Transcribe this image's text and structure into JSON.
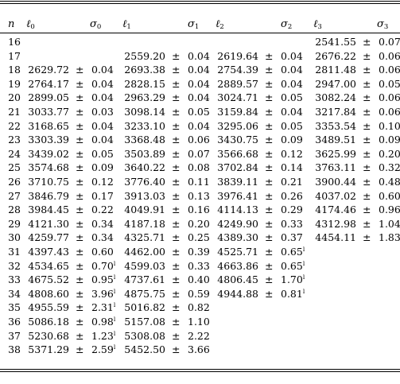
{
  "table": {
    "headers": [
      {
        "base": "n",
        "sub": ""
      },
      {
        "base": "ℓ",
        "sub": "0"
      },
      {
        "base": "σ",
        "sub": "0"
      },
      {
        "base": "ℓ",
        "sub": "1"
      },
      {
        "base": "σ",
        "sub": "1"
      },
      {
        "base": "ℓ",
        "sub": "2"
      },
      {
        "base": "σ",
        "sub": "2"
      },
      {
        "base": "ℓ",
        "sub": "3"
      },
      {
        "base": "σ",
        "sub": "3"
      }
    ],
    "pm": "±",
    "footnote_mark": "l",
    "rows": [
      {
        "n": "16",
        "cols": [
          null,
          null,
          null,
          {
            "l": "2541.55",
            "s": "0.07"
          }
        ]
      },
      {
        "n": "17",
        "cols": [
          null,
          {
            "l": "2559.20",
            "s": "0.04"
          },
          {
            "l": "2619.64",
            "s": "0.04"
          },
          {
            "l": "2676.22",
            "s": "0.06"
          }
        ]
      },
      {
        "n": "18",
        "cols": [
          {
            "l": "2629.72",
            "s": "0.04"
          },
          {
            "l": "2693.38",
            "s": "0.04"
          },
          {
            "l": "2754.39",
            "s": "0.04"
          },
          {
            "l": "2811.48",
            "s": "0.06"
          }
        ]
      },
      {
        "n": "19",
        "cols": [
          {
            "l": "2764.17",
            "s": "0.04"
          },
          {
            "l": "2828.15",
            "s": "0.04"
          },
          {
            "l": "2889.57",
            "s": "0.04"
          },
          {
            "l": "2947.00",
            "s": "0.05"
          }
        ]
      },
      {
        "n": "20",
        "cols": [
          {
            "l": "2899.05",
            "s": "0.04"
          },
          {
            "l": "2963.29",
            "s": "0.04"
          },
          {
            "l": "3024.71",
            "s": "0.05"
          },
          {
            "l": "3082.24",
            "s": "0.06"
          }
        ]
      },
      {
        "n": "21",
        "cols": [
          {
            "l": "3033.77",
            "s": "0.03"
          },
          {
            "l": "3098.14",
            "s": "0.05"
          },
          {
            "l": "3159.84",
            "s": "0.04"
          },
          {
            "l": "3217.84",
            "s": "0.06"
          }
        ]
      },
      {
        "n": "22",
        "cols": [
          {
            "l": "3168.65",
            "s": "0.04"
          },
          {
            "l": "3233.10",
            "s": "0.04"
          },
          {
            "l": "3295.06",
            "s": "0.05"
          },
          {
            "l": "3353.54",
            "s": "0.10"
          }
        ]
      },
      {
        "n": "23",
        "cols": [
          {
            "l": "3303.39",
            "s": "0.04"
          },
          {
            "l": "3368.48",
            "s": "0.06"
          },
          {
            "l": "3430.75",
            "s": "0.09"
          },
          {
            "l": "3489.51",
            "s": "0.09"
          }
        ]
      },
      {
        "n": "24",
        "cols": [
          {
            "l": "3439.02",
            "s": "0.05"
          },
          {
            "l": "3503.89",
            "s": "0.07"
          },
          {
            "l": "3566.68",
            "s": "0.12"
          },
          {
            "l": "3625.99",
            "s": "0.20"
          }
        ]
      },
      {
        "n": "25",
        "cols": [
          {
            "l": "3574.68",
            "s": "0.09"
          },
          {
            "l": "3640.22",
            "s": "0.08"
          },
          {
            "l": "3702.84",
            "s": "0.14"
          },
          {
            "l": "3763.11",
            "s": "0.32"
          }
        ]
      },
      {
        "n": "26",
        "cols": [
          {
            "l": "3710.75",
            "s": "0.12"
          },
          {
            "l": "3776.40",
            "s": "0.11"
          },
          {
            "l": "3839.11",
            "s": "0.21"
          },
          {
            "l": "3900.44",
            "s": "0.48"
          }
        ]
      },
      {
        "n": "27",
        "cols": [
          {
            "l": "3846.79",
            "s": "0.17"
          },
          {
            "l": "3913.03",
            "s": "0.13"
          },
          {
            "l": "3976.41",
            "s": "0.26"
          },
          {
            "l": "4037.02",
            "s": "0.60"
          }
        ]
      },
      {
        "n": "28",
        "cols": [
          {
            "l": "3984.45",
            "s": "0.22"
          },
          {
            "l": "4049.91",
            "s": "0.16"
          },
          {
            "l": "4114.13",
            "s": "0.29"
          },
          {
            "l": "4174.46",
            "s": "0.96"
          }
        ]
      },
      {
        "n": "29",
        "cols": [
          {
            "l": "4121.30",
            "s": "0.34"
          },
          {
            "l": "4187.18",
            "s": "0.20"
          },
          {
            "l": "4249.90",
            "s": "0.33"
          },
          {
            "l": "4312.98",
            "s": "1.04"
          }
        ]
      },
      {
        "n": "30",
        "cols": [
          {
            "l": "4259.77",
            "s": "0.34"
          },
          {
            "l": "4325.71",
            "s": "0.25"
          },
          {
            "l": "4389.30",
            "s": "0.37"
          },
          {
            "l": "4454.11",
            "s": "1.83"
          }
        ]
      },
      {
        "n": "31",
        "cols": [
          {
            "l": "4397.43",
            "s": "0.60"
          },
          {
            "l": "4462.00",
            "s": "0.39"
          },
          {
            "l": "4525.71",
            "s": "0.65",
            "fn": true
          },
          null
        ]
      },
      {
        "n": "32",
        "cols": [
          {
            "l": "4534.65",
            "s": "0.70",
            "fn": true
          },
          {
            "l": "4599.03",
            "s": "0.33"
          },
          {
            "l": "4663.86",
            "s": "0.65",
            "fn": true
          },
          null
        ]
      },
      {
        "n": "33",
        "cols": [
          {
            "l": "4675.52",
            "s": "0.95",
            "fn": true
          },
          {
            "l": "4737.61",
            "s": "0.40"
          },
          {
            "l": "4806.45",
            "s": "1.70",
            "fn": true
          },
          null
        ]
      },
      {
        "n": "34",
        "cols": [
          {
            "l": "4808.60",
            "s": "3.96",
            "fn": true
          },
          {
            "l": "4875.75",
            "s": "0.59"
          },
          {
            "l": "4944.88",
            "s": "0.81",
            "fn": true
          },
          null
        ]
      },
      {
        "n": "35",
        "cols": [
          {
            "l": "4955.59",
            "s": "2.31",
            "fn": true
          },
          {
            "l": "5016.82",
            "s": "0.82"
          },
          null,
          null
        ]
      },
      {
        "n": "36",
        "cols": [
          {
            "l": "5086.18",
            "s": "0.98",
            "fn": true
          },
          {
            "l": "5157.08",
            "s": "1.10"
          },
          null,
          null
        ]
      },
      {
        "n": "37",
        "cols": [
          {
            "l": "5230.68",
            "s": "1.23",
            "fn": true
          },
          {
            "l": "5308.08",
            "s": "2.22"
          },
          null,
          null
        ]
      },
      {
        "n": "38",
        "cols": [
          {
            "l": "5371.29",
            "s": "2.59",
            "fn": true
          },
          {
            "l": "5452.50",
            "s": "3.66"
          },
          null,
          null
        ]
      }
    ]
  }
}
